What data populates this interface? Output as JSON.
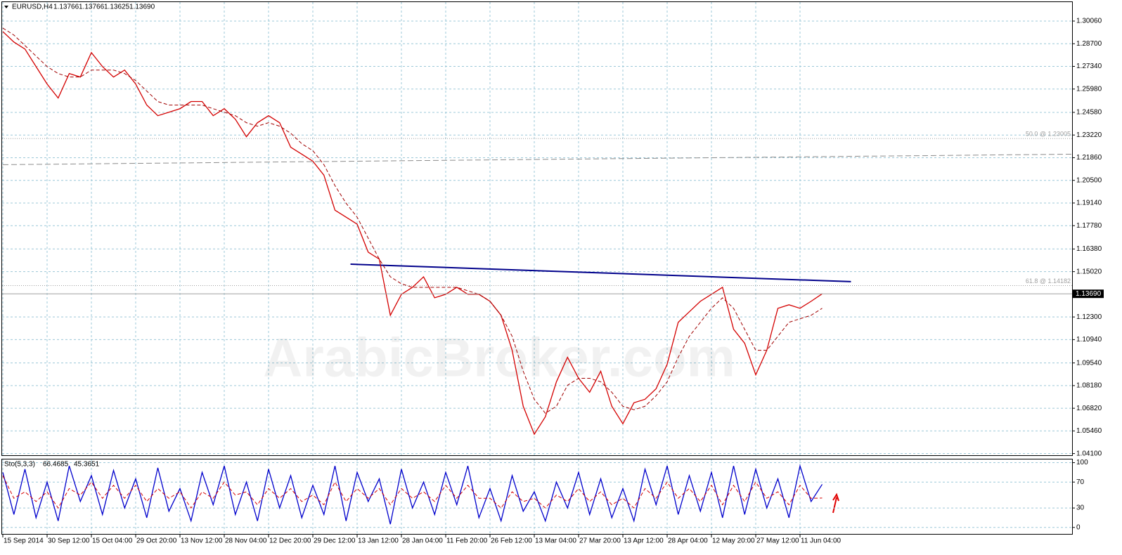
{
  "chart_data": [
    {
      "type": "line",
      "title": "EURUSD,H4",
      "ohlc": [
        1.13766,
        1.13766,
        1.13625,
        {
          "value": 1.1369,
          "label": "1.13690"
        }
      ],
      "watermark": "ArabicBroker.com",
      "categories": [
        "15 Sep 2014",
        null,
        null,
        null,
        "30 Sep 12:00",
        null,
        null,
        null,
        "15 Oct 04:00",
        null,
        null,
        null,
        "29 Oct 20:00",
        null,
        null,
        null,
        "13 Nov 12:00",
        null,
        null,
        null,
        "28 Nov 04:00",
        null,
        null,
        null,
        "12 Dec 20:00",
        null,
        null,
        null,
        "29 Dec 12:00",
        null,
        null,
        null,
        "13 Jan 12:00",
        null,
        null,
        null,
        "28 Jan 04:00",
        null,
        null,
        null,
        "11 Feb 20:00",
        null,
        null,
        null,
        "26 Feb 12:00",
        null,
        null,
        null,
        "13 Mar 04:00",
        null,
        null,
        null,
        "27 Mar 20:00",
        null,
        null,
        null,
        "13 Apr 12:00",
        null,
        null,
        null,
        "28 Apr 04:00",
        null,
        null,
        null,
        "12 May 20:00",
        null,
        null,
        null,
        "27 May 12:00",
        null,
        null,
        null,
        "11 Jun 04:00",
        null,
        null
      ],
      "series": [
        {
          "color": "#d40000",
          "values": [
            1.2943,
            1.288,
            1.2838,
            1.2733,
            1.2628,
            1.2544,
            1.2691,
            1.267,
            1.2817,
            1.2733,
            1.267,
            1.2712,
            1.2628,
            1.2502,
            1.2438,
            1.2459,
            1.248,
            1.2523,
            1.2523,
            1.2438,
            1.248,
            1.2417,
            1.2312,
            1.2396,
            1.2438,
            1.2396,
            1.2249,
            1.2207,
            1.2165,
            1.2081,
            1.1871,
            1.1829,
            1.1787,
            1.1619,
            1.1577,
            1.124,
            1.1366,
            1.1408,
            1.1471,
            1.1345,
            1.1366,
            1.1408,
            1.1366,
            1.1366,
            1.1324,
            1.124,
            1.103,
            1.0694,
            1.0526,
            1.0631,
            1.0841,
            1.0988,
            1.0862,
            1.0778,
            1.0904,
            1.0694,
            1.0589,
            1.0715,
            1.0736,
            1.0799,
            1.0946,
            1.1198,
            1.1261,
            1.1324,
            1.1366,
            1.1408,
            1.1156,
            1.1072,
            1.0883,
            1.103,
            1.1282,
            1.1303,
            1.1282,
            1.1324,
            1.1369
          ]
        },
        {
          "color": "#a00000",
          "dashed": true,
          "values": [
            1.2964,
            1.2922,
            1.2859,
            1.2796,
            1.2733,
            1.2691,
            1.267,
            1.267,
            1.2712,
            1.2712,
            1.2712,
            1.2691,
            1.2649,
            1.2586,
            1.2523,
            1.2502,
            1.2502,
            1.2502,
            1.2502,
            1.248,
            1.2459,
            1.2438,
            1.2396,
            1.2375,
            1.2396,
            1.2375,
            1.2333,
            1.227,
            1.2228,
            1.2144,
            1.2018,
            1.1913,
            1.1829,
            1.1703,
            1.1577,
            1.1471,
            1.1429,
            1.1408,
            1.1408,
            1.1408,
            1.1408,
            1.1408,
            1.1387,
            1.1366,
            1.1324,
            1.124,
            1.1114,
            1.0904,
            1.0736,
            1.0652,
            1.0694,
            1.082,
            1.0862,
            1.0862,
            1.0841,
            1.0778,
            1.0694,
            1.0673,
            1.0694,
            1.0757,
            1.0841,
            1.0988,
            1.1114,
            1.1198,
            1.1282,
            1.1345,
            1.1282,
            1.1156,
            1.103,
            1.103,
            1.1114,
            1.1198,
            1.1219,
            1.124,
            1.1282
          ]
        }
      ],
      "lines": [
        {
          "color": "#8c8c8c",
          "dashed": true,
          "x": [
            0,
            96.6
          ],
          "values": [
            1.2144,
            1.2207
          ]
        },
        {
          "color": "#00008b",
          "dashed": false,
          "x": [
            31.4,
            76.6
          ],
          "values": [
            1.1547,
            1.1442
          ]
        }
      ],
      "fibo_levels": [
        {
          "value": 1.23005,
          "label": "50.0 @ 1.23005"
        },
        {
          "value": 1.14182,
          "label": "61.8 @ 1.14182"
        }
      ],
      "last_price": {
        "value": 1.1369,
        "label": "1.13690"
      },
      "ylim": [
        1.04,
        1.3124
      ],
      "yticks": [
        {
          "value": 1.3006,
          "label": "1.30060"
        },
        {
          "value": 1.287,
          "label": "1.28700"
        },
        {
          "value": 1.2734,
          "label": "1.27340"
        },
        {
          "value": 1.2598,
          "label": "1.25980"
        },
        {
          "value": 1.2458,
          "label": "1.24580"
        },
        {
          "value": 1.2322,
          "label": "1.23220"
        },
        {
          "value": 1.2186,
          "label": "1.21860"
        },
        {
          "value": 1.205,
          "label": "1.20500"
        },
        {
          "value": 1.1914,
          "label": "1.19140"
        },
        {
          "value": 1.1778,
          "label": "1.17780"
        },
        {
          "value": 1.1638,
          "label": "1.16380"
        },
        {
          "value": 1.1502,
          "label": "1.15020"
        },
        {
          "value": 1.123,
          "label": "1.12300"
        },
        {
          "value": 1.1094,
          "label": "1.10940"
        },
        {
          "value": 1.0954,
          "label": "1.09540"
        },
        {
          "value": 1.0818,
          "label": "1.08180"
        },
        {
          "value": 1.0682,
          "label": "1.06820"
        },
        {
          "value": 1.0546,
          "label": "1.05460"
        },
        {
          "value": 1.041,
          "label": "1.04100"
        }
      ],
      "grid": true
    },
    {
      "type": "line",
      "title": "Sto(5,3,3)",
      "readings": [
        66.4685,
        45.3651
      ],
      "series": [
        {
          "color": "#0000cc",
          "values": [
            85,
            20,
            90,
            15,
            70,
            10,
            95,
            40,
            80,
            20,
            88,
            30,
            75,
            15,
            92,
            25,
            60,
            10,
            85,
            35,
            95,
            20,
            70,
            10,
            90,
            30,
            80,
            15,
            65,
            20,
            95,
            10,
            85,
            40,
            75,
            5,
            90,
            30,
            70,
            20,
            85,
            35,
            95,
            15,
            60,
            10,
            80,
            25,
            55,
            10,
            70,
            30,
            85,
            20,
            75,
            15,
            60,
            10,
            90,
            35,
            95,
            20,
            80,
            25,
            85,
            15,
            95,
            20,
            90,
            30,
            75,
            15,
            95,
            40,
            66.4685
          ]
        },
        {
          "color": "#d40000",
          "dashed": true,
          "values": [
            80,
            45,
            55,
            40,
            55,
            30,
            60,
            50,
            70,
            45,
            65,
            45,
            65,
            40,
            60,
            45,
            55,
            30,
            55,
            45,
            70,
            50,
            55,
            35,
            60,
            45,
            60,
            40,
            50,
            35,
            70,
            40,
            60,
            45,
            60,
            35,
            60,
            45,
            55,
            40,
            65,
            45,
            65,
            45,
            45,
            30,
            55,
            40,
            45,
            30,
            50,
            40,
            60,
            40,
            55,
            35,
            45,
            30,
            60,
            45,
            70,
            45,
            60,
            40,
            65,
            35,
            65,
            40,
            70,
            45,
            55,
            35,
            65,
            45,
            45.3651
          ]
        }
      ],
      "ylim": [
        -10,
        106
      ],
      "yticks": [
        100,
        70,
        30,
        0
      ],
      "grid": true
    }
  ]
}
